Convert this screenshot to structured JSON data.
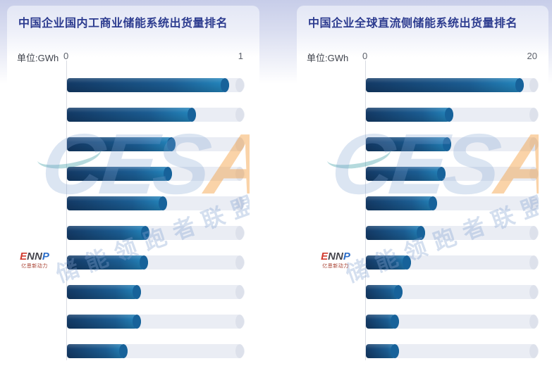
{
  "chart_data": [
    {
      "type": "bar",
      "orientation": "horizontal",
      "title": "中国企业国内工商业储能系统出货量排名",
      "unit_label": "单位:GWh",
      "axis": {
        "min": 0,
        "max": 1,
        "min_label": "0",
        "max_label": "1",
        "track_end_value": 1.03
      },
      "bar_count": 10,
      "bar_labels_visible": false,
      "values": [
        0.94,
        0.75,
        0.63,
        0.61,
        0.58,
        0.48,
        0.47,
        0.43,
        0.43,
        0.35
      ],
      "legend": null,
      "grid": false
    },
    {
      "type": "bar",
      "orientation": "horizontal",
      "title": "中国企业全球直流侧储能系统出货量排名",
      "unit_label": "单位:GWh",
      "axis": {
        "min": 0,
        "max": 20,
        "min_label": "0",
        "max_label": "20",
        "track_end_value": 20.8
      },
      "bar_count": 10,
      "bar_labels_visible": false,
      "values": [
        19,
        10.5,
        10.3,
        9.6,
        8.6,
        7.1,
        5.4,
        4.4,
        4.0,
        4.0
      ],
      "legend": null,
      "grid": false
    }
  ],
  "watermark": {
    "brand_prefix": "CES",
    "brand_accent": "A",
    "alliance_text": "储能领跑者联盟"
  },
  "ennp_logo": {
    "red": "E",
    "dark": "NN",
    "blue": "P",
    "subtext": "亿恩新动力"
  },
  "colors": {
    "title_text": "#2c3b8f",
    "bar_gradient_dark": "#133a66",
    "bar_gradient_light": "#2489c0",
    "bar_end_cap": "#17629a",
    "track": "#eaedf4",
    "track_end_cap": "#dde1eb",
    "header_lavender": "#c7cde9",
    "watermark_blue": "rgba(126,160,210,0.28)",
    "watermark_orange": "rgba(243,157,62,0.45)"
  }
}
